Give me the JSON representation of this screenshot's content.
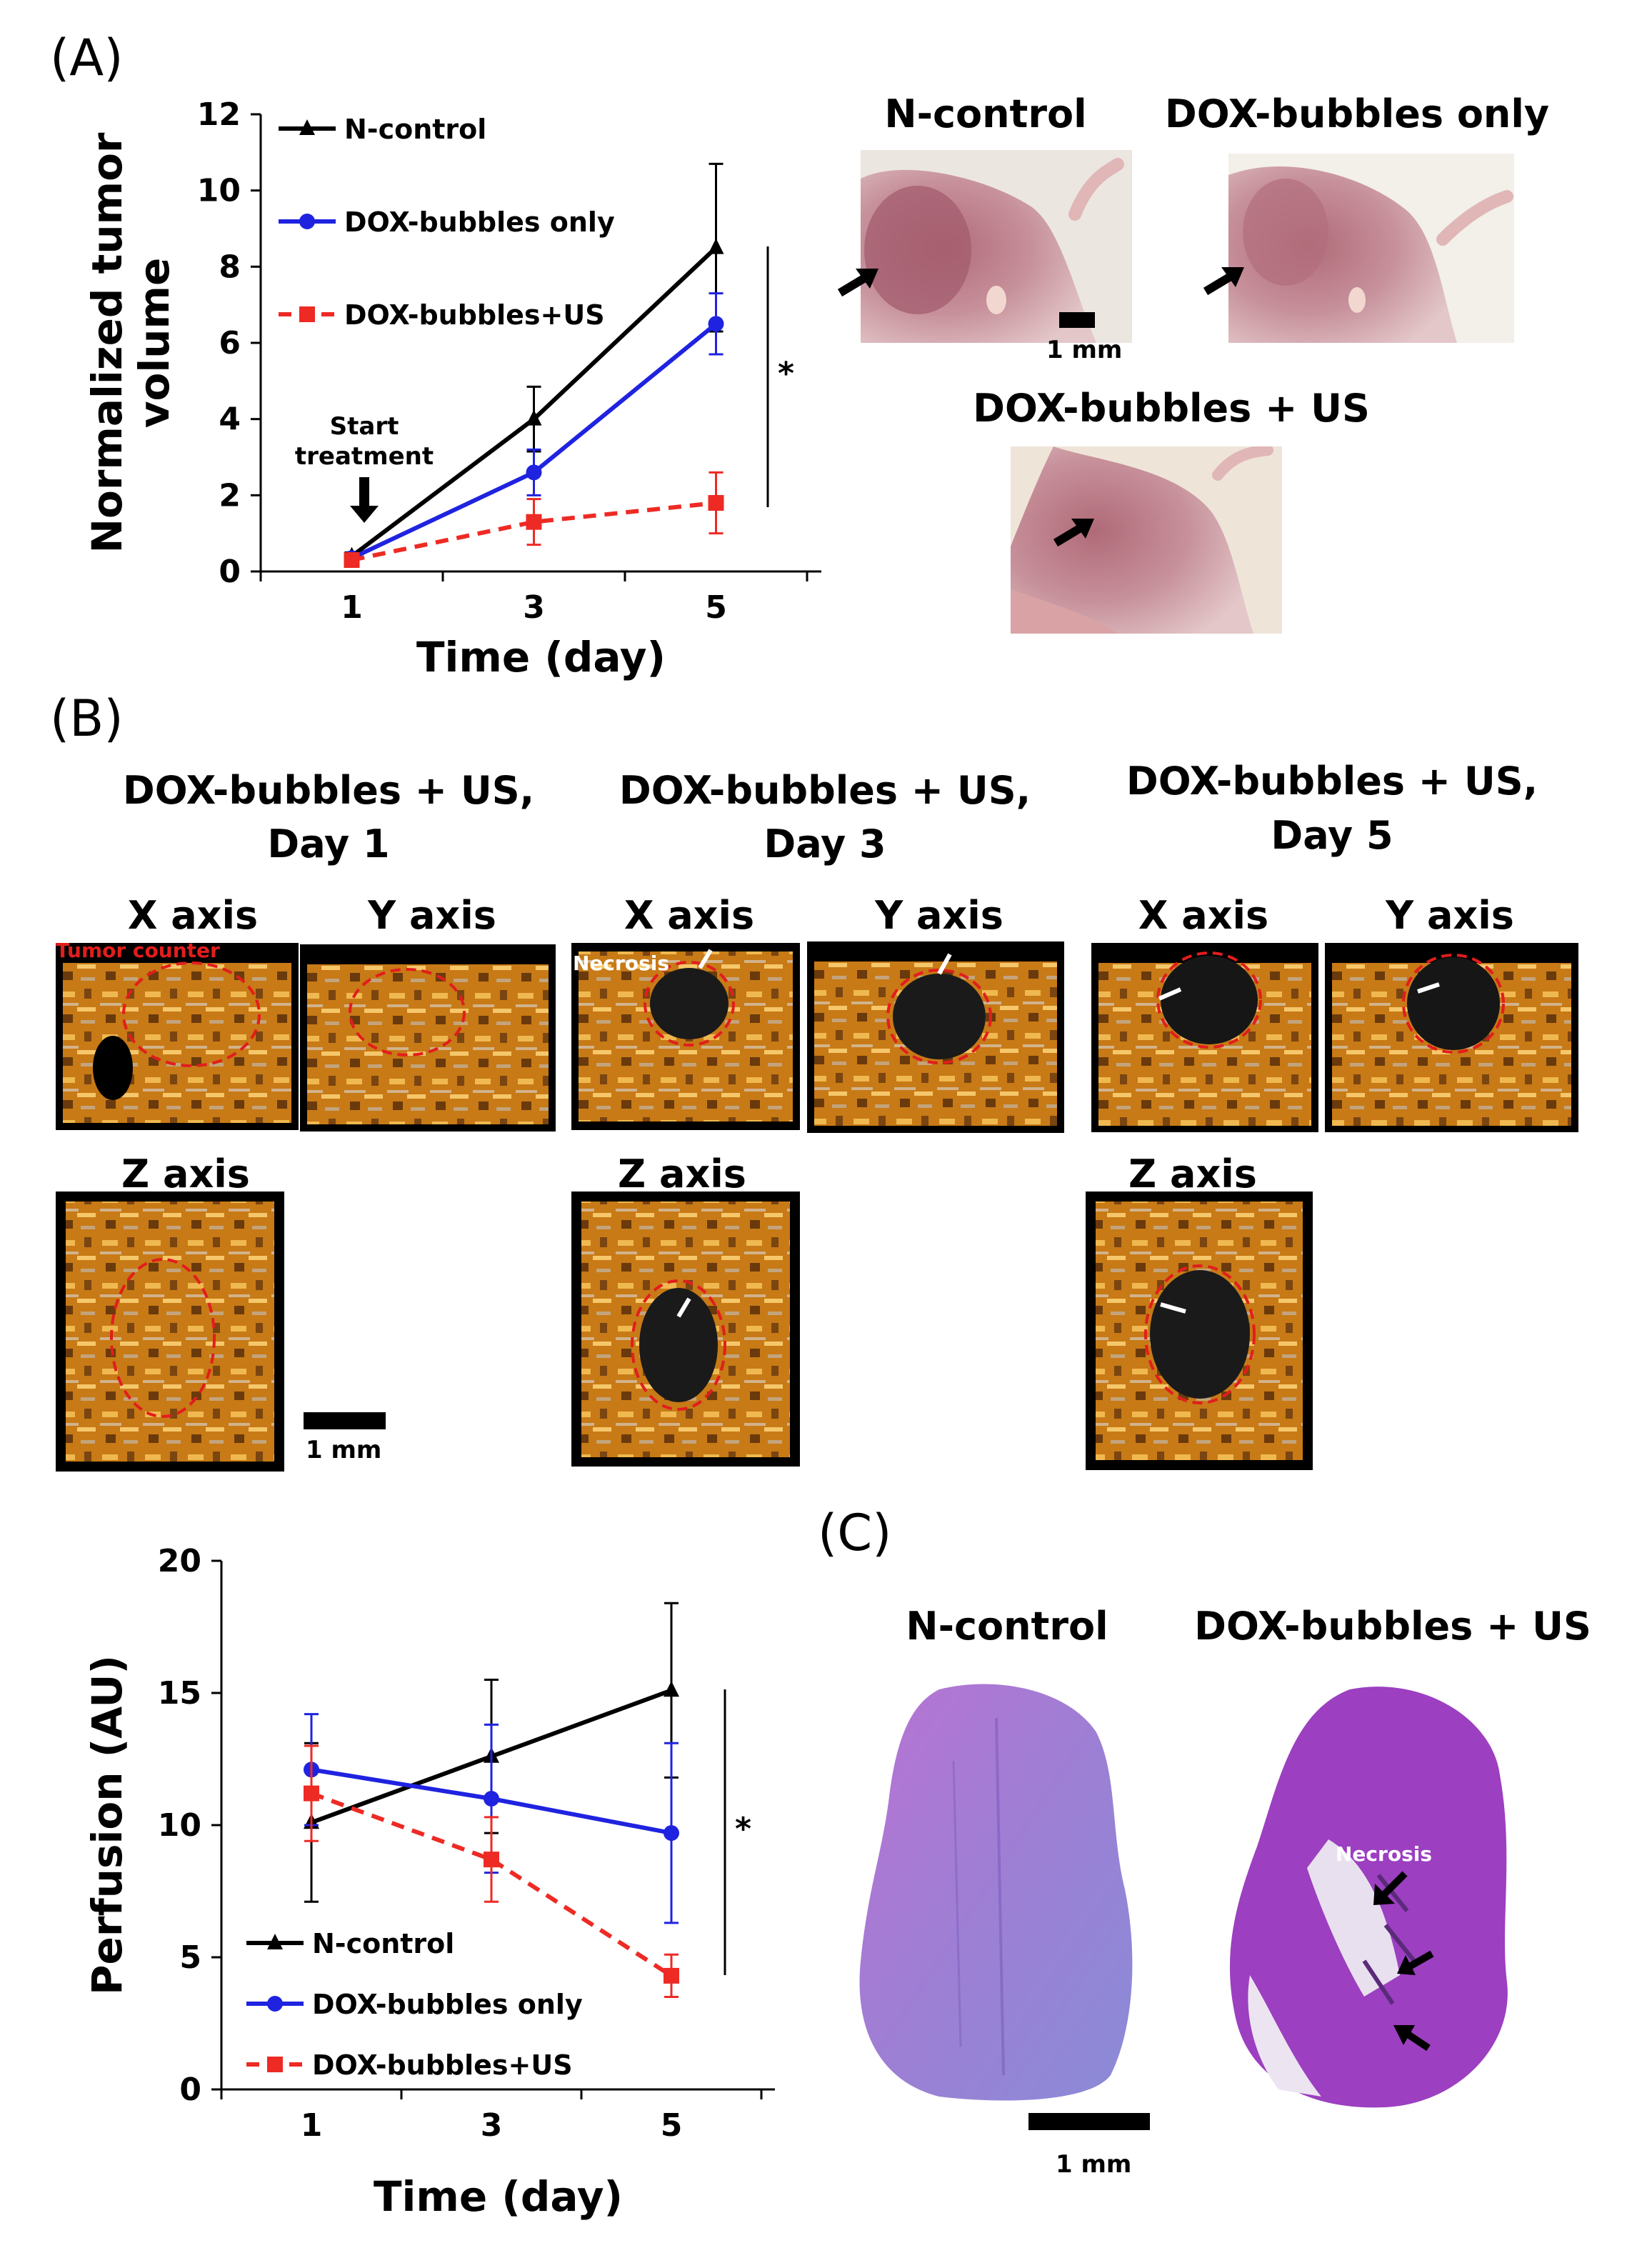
{
  "panels": {
    "a": "(A)",
    "b": "(B)",
    "c": "(C)"
  },
  "chart_data": [
    {
      "type": "line",
      "title": "",
      "xlabel": "Time (day)",
      "ylabel": "Normalized tumor volume",
      "categories": [
        "1",
        "3",
        "5"
      ],
      "ylim": [
        0,
        12
      ],
      "yticks": [
        "0",
        "2",
        "4",
        "6",
        "8",
        "10",
        "12"
      ],
      "series": [
        {
          "name": "N-control",
          "color": "#000000",
          "values": [
            0.4,
            4.0,
            8.5
          ],
          "errors": [
            0.1,
            0.85,
            2.2
          ]
        },
        {
          "name": "DOX-bubbles only",
          "color": "#1f23e0",
          "values": [
            0.35,
            2.6,
            6.5
          ],
          "errors": [
            0.1,
            0.6,
            0.8
          ]
        },
        {
          "name": "DOX-bubbles+US",
          "color": "#ee2a24",
          "values": [
            0.3,
            1.3,
            1.8
          ],
          "errors": [
            0.1,
            0.6,
            0.8
          ]
        }
      ],
      "annotations": {
        "start": "Start\ntreatment",
        "significance": "*"
      }
    },
    {
      "type": "line",
      "title": "",
      "xlabel": "Time (day)",
      "ylabel": "Perfusion (AU)",
      "categories": [
        "1",
        "3",
        "5"
      ],
      "ylim": [
        0,
        20
      ],
      "yticks": [
        "0",
        "5",
        "10",
        "15",
        "20"
      ],
      "series": [
        {
          "name": "N-control",
          "color": "#000000",
          "values": [
            10.1,
            12.6,
            15.1
          ],
          "errors": [
            3.0,
            2.9,
            3.3
          ]
        },
        {
          "name": "DOX-bubbles only",
          "color": "#1f23e0",
          "values": [
            12.1,
            11.0,
            9.7
          ],
          "errors": [
            2.1,
            2.8,
            3.4
          ]
        },
        {
          "name": "DOX-bubbles+US",
          "color": "#ee2a24",
          "values": [
            11.2,
            8.7,
            4.3
          ],
          "errors": [
            1.8,
            1.6,
            0.8
          ]
        }
      ],
      "annotations": {
        "significance": "*"
      }
    }
  ],
  "panelA_photos": {
    "titles": [
      "N-control",
      "DOX-bubbles only",
      "DOX-bubbles + US"
    ],
    "scale": "1 mm"
  },
  "panelB": {
    "groups": [
      {
        "line1": "DOX-bubbles + US,",
        "line2": "Day 1"
      },
      {
        "line1": "DOX-bubbles + US,",
        "line2": "Day 3"
      },
      {
        "line1": "DOX-bubbles + US,",
        "line2": "Day 5"
      }
    ],
    "axes": {
      "x": "X axis",
      "y": "Y axis",
      "z": "Z axis"
    },
    "tumor_label": "Tumor\ncounter",
    "necrosis": "Necrosis",
    "scale": "1 mm"
  },
  "panelC": {
    "titles": [
      "N-control",
      "DOX-bubbles + US"
    ],
    "necrosis": "Necrosis",
    "scale": "1 mm"
  },
  "colors": {
    "black": "#000000",
    "blue": "#1f23e0",
    "red": "#ee2a24",
    "us_orange": "#d48a1a",
    "he_purple": "#9c3fc0"
  }
}
